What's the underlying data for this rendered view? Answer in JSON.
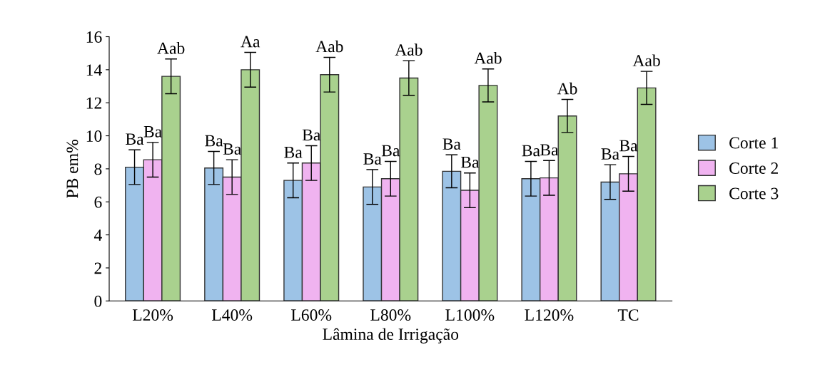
{
  "chart_data": {
    "type": "bar",
    "xlabel": "Lâmina de Irrigação",
    "ylabel": "PB em%",
    "categories": [
      "L20%",
      "L40%",
      "L60%",
      "L80%",
      "L100%",
      "L120%",
      "TC"
    ],
    "series": [
      {
        "name": "Corte 1",
        "color": "#9dc3e6",
        "values": [
          8.1,
          8.05,
          7.3,
          6.9,
          7.85,
          7.4,
          7.2
        ],
        "errors": [
          1.05,
          1.0,
          1.05,
          1.05,
          1.0,
          1.05,
          1.05
        ],
        "value_labels": [
          "Ba",
          "Ba",
          "Ba",
          "Ba",
          "Ba",
          "Ba",
          "Ba"
        ]
      },
      {
        "name": "Corte 2",
        "color": "#f0b3f0",
        "values": [
          8.55,
          7.5,
          8.35,
          7.4,
          6.7,
          7.45,
          7.7
        ],
        "errors": [
          1.05,
          1.05,
          1.05,
          1.05,
          1.05,
          1.05,
          1.05
        ],
        "value_labels": [
          "Ba",
          "Ba",
          "Ba",
          "Ba",
          "Ba",
          "Ba",
          "Ba"
        ]
      },
      {
        "name": "Corte 3",
        "color": "#a9d18e",
        "values": [
          13.6,
          14.0,
          13.7,
          13.5,
          13.05,
          11.2,
          12.9
        ],
        "errors": [
          1.05,
          1.05,
          1.05,
          1.05,
          1.0,
          1.0,
          1.0
        ],
        "value_labels": [
          "Aab",
          "Aa",
          "Aab",
          "Aab",
          "Aab",
          "Ab",
          "Aab"
        ]
      }
    ],
    "ylim": [
      0,
      16
    ],
    "yticks": [
      0,
      2,
      4,
      6,
      8,
      10,
      12,
      14,
      16
    ],
    "grid": false,
    "legend": "right"
  }
}
